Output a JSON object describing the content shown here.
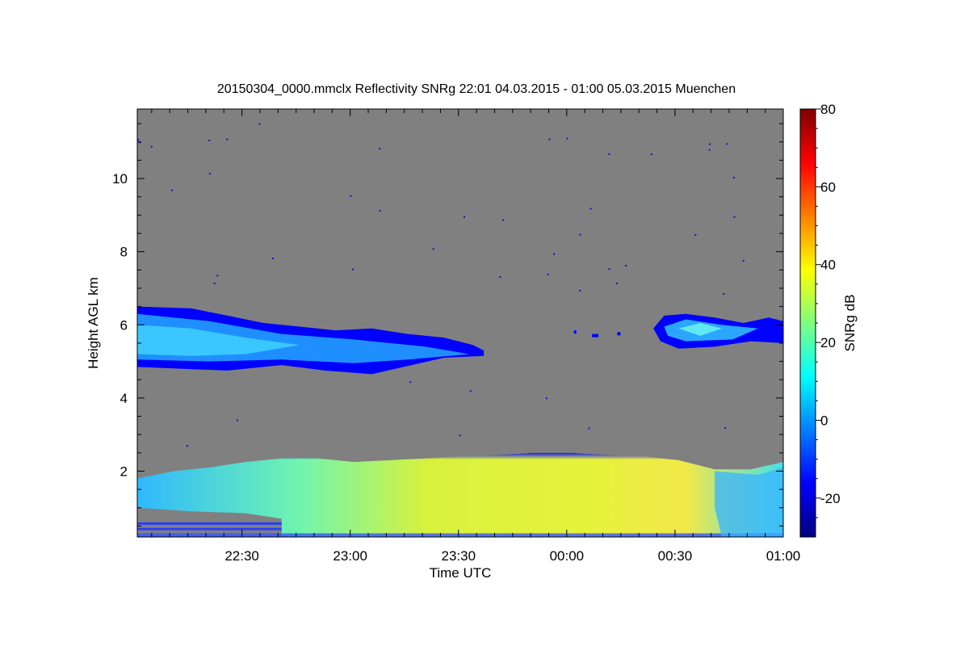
{
  "chart_data": {
    "type": "heatmap",
    "title": "20150304_0000.mmclx Reflectivity SNRg   22:01 04.03.2015 - 01:00 05.03.2015 Muenchen",
    "xlabel": "Time UTC",
    "ylabel": "Height AGL km",
    "x_ticks": [
      "22:30",
      "23:00",
      "23:30",
      "00:00",
      "00:30",
      "01:00"
    ],
    "x_tick_minutes": [
      29,
      59,
      89,
      119,
      149,
      179
    ],
    "xlim_minutes": [
      0,
      179
    ],
    "y_ticks": [
      "2",
      "4",
      "6",
      "8",
      "10"
    ],
    "y_tick_values": [
      2,
      4,
      6,
      8,
      10
    ],
    "ylim": [
      0.2,
      11.9
    ],
    "background_color": "#808080",
    "colorbar": {
      "label": "SNRg dB",
      "ticks": [
        "-20",
        "0",
        "20",
        "40",
        "60",
        "80"
      ],
      "tick_values": [
        -20,
        0,
        20,
        40,
        60,
        80
      ],
      "range": [
        -30,
        80
      ],
      "colors": [
        "#00007f",
        "#0000ff",
        "#007fff",
        "#00ffff",
        "#7fff7f",
        "#ffff00",
        "#ff7f00",
        "#ff0000",
        "#7f0000"
      ]
    },
    "features": [
      {
        "name": "upper cloud layer",
        "t_start_min": 0,
        "t_end_min": 96,
        "base_km": 4.9,
        "top_km": 6.5,
        "snr_db": 5
      },
      {
        "name": "upper cloud layer (late)",
        "t_start_min": 143,
        "t_end_min": 179,
        "base_km": 5.4,
        "top_km": 6.3,
        "snr_db": 8
      },
      {
        "name": "low precipitation layer",
        "t_start_min": 0,
        "t_end_min": 179,
        "base_km": 0.2,
        "top_km": 2.5,
        "snr_db": 25
      }
    ]
  }
}
